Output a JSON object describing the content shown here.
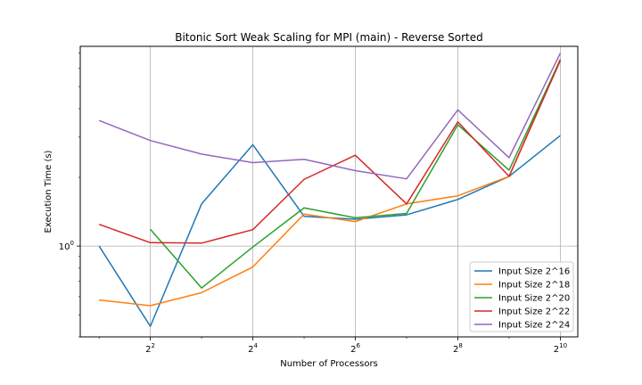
{
  "chart_data": {
    "type": "line",
    "title": "Bitonic Sort Weak Scaling for MPI (main) - Reverse Sorted",
    "xlabel": "Number of Processors",
    "ylabel": "Execution Time (s)",
    "x_scale": "log2",
    "y_scale": "log",
    "xlim": [
      1.55,
      1297
    ],
    "ylim": [
      0.4,
      7.5
    ],
    "x_ticks": [
      {
        "value": 4,
        "label_base": "2",
        "label_exp": "2"
      },
      {
        "value": 16,
        "label_base": "2",
        "label_exp": "4"
      },
      {
        "value": 64,
        "label_base": "2",
        "label_exp": "6"
      },
      {
        "value": 256,
        "label_base": "2",
        "label_exp": "8"
      },
      {
        "value": 1024,
        "label_base": "2",
        "label_exp": "10"
      }
    ],
    "y_ticks": [
      {
        "value": 1.0,
        "label": "10",
        "label_exp": "0"
      }
    ],
    "grid": true,
    "legend_position": "lower-right",
    "x": [
      2,
      4,
      8,
      16,
      32,
      64,
      128,
      256,
      512,
      1024
    ],
    "series": [
      {
        "name": "Input Size 2^16",
        "color": "#1f77b4",
        "values": [
          1.0,
          0.445,
          1.53,
          2.78,
          1.35,
          1.31,
          1.37,
          1.6,
          2.02,
          3.05
        ]
      },
      {
        "name": "Input Size 2^18",
        "color": "#ff7f0e",
        "values": [
          0.58,
          0.548,
          0.625,
          0.81,
          1.38,
          1.28,
          1.53,
          1.66,
          2.02,
          6.6
        ]
      },
      {
        "name": "Input Size 2^20",
        "color": "#2ca02c",
        "values": [
          null,
          1.185,
          0.655,
          0.99,
          1.47,
          1.33,
          1.39,
          3.4,
          2.15,
          6.55
        ]
      },
      {
        "name": "Input Size 2^22",
        "color": "#d62728",
        "values": [
          1.245,
          1.035,
          1.03,
          1.18,
          1.96,
          2.5,
          1.53,
          3.5,
          2.02,
          6.5
        ]
      },
      {
        "name": "Input Size 2^24",
        "color": "#9467bd",
        "values": [
          3.55,
          2.9,
          2.53,
          2.32,
          2.4,
          2.14,
          1.97,
          3.95,
          2.44,
          7.0
        ]
      }
    ]
  }
}
